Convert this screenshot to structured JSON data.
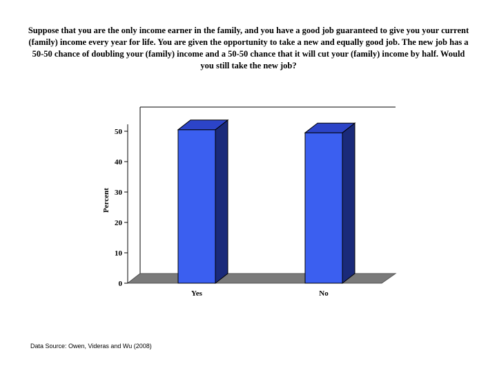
{
  "question": "Suppose that you are the only income earner in the family, and you have a good job guaranteed to give you your current (family) income every year for life. You are given the opportunity to take a new and equally good job. The new job has a 50-50 chance of doubling your (family) income and a 50-50 chance that it will cut your (family) income by half. Would you still take the new job?",
  "source": "Data Source: Owen, Videras and Wu (2008)",
  "chart_data": {
    "type": "bar",
    "title": "",
    "categories": [
      "Yes",
      "No"
    ],
    "values": [
      50.5,
      49.5
    ],
    "xlabel": "",
    "ylabel": "Percent",
    "ylim": [
      0,
      50
    ],
    "yticks": [
      0,
      10,
      20,
      30,
      40,
      50
    ],
    "grid": false,
    "legend": "none",
    "colors": {
      "bar_front": "#3b5ff0",
      "bar_side": "#1a2a7a",
      "bar_top": "#2c44c8",
      "floor": "#7a7a7a",
      "wall_edge": "#000000"
    }
  }
}
